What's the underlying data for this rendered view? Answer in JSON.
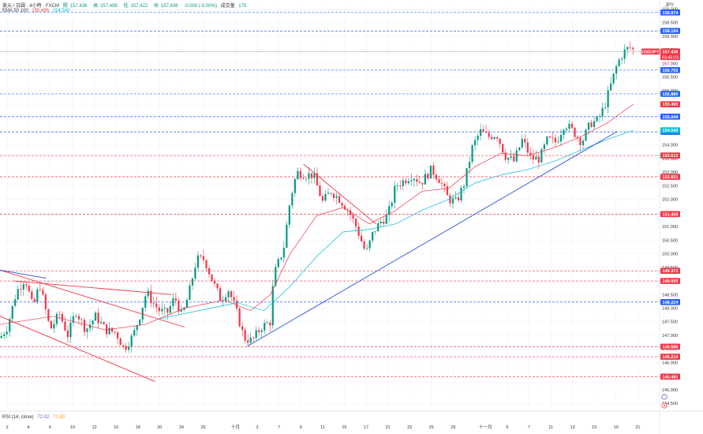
{
  "header": {
    "symbol": "美元 / 日圓 · 4小時 · FXCM",
    "open_label": "開",
    "open": "157.436",
    "high_label": "高",
    "high": "157.498",
    "low_label": "低",
    "low": "157.422",
    "close_label": "收",
    "close": "157.436",
    "change": "-0.000 (-0.00%)",
    "volume_label": "成交量",
    "volume": "175",
    "ema_label": "EMA 50 100",
    "ema_fast": "155.495",
    "ema_slow": "154.540"
  },
  "rsi": {
    "label": "RSI (14, close)",
    "value1": "72.02",
    "value2": "71.63"
  },
  "currency": "JPY",
  "colors": {
    "up": "#089981",
    "down": "#f23645",
    "ema_fast": "#f23645",
    "ema_slow": "#00bcd4",
    "trend_blue": "#2a4fd6",
    "level_blue": "#2962ff",
    "level_red": "#f23645",
    "axis_text": "#333333",
    "grid": "#f0f3fa"
  },
  "chart_data": {
    "type": "candlestick",
    "currency": "JPY",
    "y_axis": {
      "range": [
        144.3,
        159.1
      ],
      "ticks": [
        "159.000",
        "158.500",
        "158.000",
        "157.500",
        "157.000",
        "156.500",
        "156.000",
        "155.500",
        "155.000",
        "154.500",
        "154.000",
        "153.500",
        "153.000",
        "152.500",
        "152.000",
        "151.500",
        "151.000",
        "150.500",
        "150.000",
        "149.500",
        "149.000",
        "148.500",
        "148.000",
        "147.500",
        "147.000",
        "146.500",
        "146.000",
        "145.500",
        "145.000",
        "144.500"
      ]
    },
    "x_axis": {
      "range": [
        0,
        100
      ],
      "ticks": [
        {
          "label": "2",
          "pos": 1.1
        },
        {
          "label": "4",
          "pos": 4.3
        },
        {
          "label": "6",
          "pos": 7.6
        },
        {
          "label": "10",
          "pos": 11.0
        },
        {
          "label": "12",
          "pos": 14.3
        },
        {
          "label": "16",
          "pos": 17.6
        },
        {
          "label": "18",
          "pos": 20.9
        },
        {
          "label": "20",
          "pos": 24.2
        },
        {
          "label": "24",
          "pos": 27.5
        },
        {
          "label": "26",
          "pos": 30.8
        },
        {
          "label": "十月",
          "pos": 35.7
        },
        {
          "label": "3",
          "pos": 39.0
        },
        {
          "label": "7",
          "pos": 42.3
        },
        {
          "label": "9",
          "pos": 45.6
        },
        {
          "label": "11",
          "pos": 48.9
        },
        {
          "label": "15",
          "pos": 52.2
        },
        {
          "label": "17",
          "pos": 55.5
        },
        {
          "label": "21",
          "pos": 58.8
        },
        {
          "label": "23",
          "pos": 62.1
        },
        {
          "label": "25",
          "pos": 65.4
        },
        {
          "label": "29",
          "pos": 68.7
        },
        {
          "label": "十一月",
          "pos": 73.6
        },
        {
          "label": "5",
          "pos": 76.9
        },
        {
          "label": "7",
          "pos": 80.2
        },
        {
          "label": "11",
          "pos": 83.5
        },
        {
          "label": "13",
          "pos": 86.8
        },
        {
          "label": "15",
          "pos": 90.1
        },
        {
          "label": "19",
          "pos": 93.4
        },
        {
          "label": "21",
          "pos": 96.7
        }
      ]
    },
    "price_path": [
      [
        0,
        146.9
      ],
      [
        1.1,
        147.3
      ],
      [
        2.5,
        148.6
      ],
      [
        3.8,
        149.1
      ],
      [
        5.0,
        148.0
      ],
      [
        6.0,
        148.9
      ],
      [
        7.6,
        147.2
      ],
      [
        9.0,
        147.8
      ],
      [
        10.3,
        147.0
      ],
      [
        11.5,
        147.9
      ],
      [
        13.0,
        147.2
      ],
      [
        14.5,
        147.7
      ],
      [
        16.0,
        147.2
      ],
      [
        17.6,
        147.1
      ],
      [
        18.8,
        146.5
      ],
      [
        20.2,
        147.0
      ],
      [
        21.3,
        147.8
      ],
      [
        22.2,
        148.6
      ],
      [
        23.2,
        148.2
      ],
      [
        24.2,
        147.9
      ],
      [
        25.3,
        147.8
      ],
      [
        26.5,
        148.4
      ],
      [
        27.6,
        147.7
      ],
      [
        28.6,
        148.5
      ],
      [
        29.8,
        149.8
      ],
      [
        31.0,
        149.8
      ],
      [
        32.2,
        149.0
      ],
      [
        33.5,
        148.3
      ],
      [
        34.6,
        148.7
      ],
      [
        35.7,
        148.0
      ],
      [
        37.0,
        146.9
      ],
      [
        38.2,
        146.8
      ],
      [
        39.6,
        147.3
      ],
      [
        41.0,
        147.5
      ],
      [
        41.5,
        149.2
      ],
      [
        43.0,
        150.2
      ],
      [
        44.0,
        152.0
      ],
      [
        45.0,
        153.0
      ],
      [
        46.3,
        152.9
      ],
      [
        47.5,
        152.9
      ],
      [
        48.9,
        151.9
      ],
      [
        50.2,
        152.3
      ],
      [
        51.5,
        152.0
      ],
      [
        52.8,
        151.6
      ],
      [
        54.0,
        151.0
      ],
      [
        55.5,
        150.0
      ],
      [
        56.6,
        150.8
      ],
      [
        57.8,
        151.2
      ],
      [
        58.8,
        151.4
      ],
      [
        60.0,
        152.5
      ],
      [
        61.3,
        152.7
      ],
      [
        62.5,
        152.9
      ],
      [
        63.8,
        152.6
      ],
      [
        65.4,
        153.1
      ],
      [
        66.7,
        152.7
      ],
      [
        68.0,
        152.0
      ],
      [
        69.2,
        151.9
      ],
      [
        70.4,
        152.6
      ],
      [
        71.6,
        153.9
      ],
      [
        72.8,
        154.5
      ],
      [
        74.0,
        154.3
      ],
      [
        75.3,
        154.4
      ],
      [
        76.6,
        153.6
      ],
      [
        77.9,
        153.4
      ],
      [
        79.2,
        154.2
      ],
      [
        80.5,
        153.5
      ],
      [
        81.8,
        153.5
      ],
      [
        83.0,
        154.2
      ],
      [
        84.3,
        154.1
      ],
      [
        85.6,
        154.8
      ],
      [
        86.9,
        154.5
      ],
      [
        88.2,
        154.1
      ],
      [
        89.5,
        154.8
      ],
      [
        90.6,
        154.9
      ],
      [
        91.6,
        155.4
      ],
      [
        92.6,
        156.2
      ],
      [
        93.6,
        157.0
      ],
      [
        94.5,
        157.4
      ],
      [
        95.4,
        157.6
      ],
      [
        96.3,
        157.44
      ]
    ],
    "ema_fast_path": [
      [
        0,
        147.4
      ],
      [
        8,
        147.7
      ],
      [
        16,
        147.2
      ],
      [
        22,
        147.4
      ],
      [
        28,
        148.0
      ],
      [
        34,
        148.3
      ],
      [
        38,
        147.9
      ],
      [
        41,
        148.5
      ],
      [
        44,
        150.0
      ],
      [
        48,
        151.4
      ],
      [
        52,
        151.7
      ],
      [
        56,
        151.1
      ],
      [
        60,
        151.6
      ],
      [
        64,
        152.3
      ],
      [
        68,
        152.4
      ],
      [
        72,
        153.2
      ],
      [
        76,
        153.7
      ],
      [
        80,
        153.6
      ],
      [
        84,
        153.9
      ],
      [
        88,
        154.3
      ],
      [
        92,
        154.8
      ],
      [
        96,
        155.5
      ]
    ],
    "ema_slow_path": [
      [
        24,
        147.6
      ],
      [
        30,
        147.9
      ],
      [
        36,
        148.2
      ],
      [
        40,
        147.9
      ],
      [
        44,
        148.8
      ],
      [
        48,
        149.9
      ],
      [
        52,
        150.8
      ],
      [
        56,
        150.9
      ],
      [
        60,
        151.1
      ],
      [
        64,
        151.6
      ],
      [
        68,
        152.0
      ],
      [
        72,
        152.6
      ],
      [
        76,
        152.9
      ],
      [
        80,
        153.1
      ],
      [
        84,
        153.4
      ],
      [
        88,
        153.8
      ],
      [
        92,
        154.2
      ],
      [
        96,
        154.54
      ]
    ],
    "trendlines": [
      {
        "color": "blue",
        "from": [
          37.5,
          146.6
        ],
        "to": [
          93.6,
          154.5
        ]
      },
      {
        "color": "red",
        "from": [
          46.0,
          153.3
        ],
        "to": [
          57.0,
          151.1
        ]
      },
      {
        "color": "red",
        "from": [
          2.0,
          149.0
        ],
        "to": [
          26.0,
          148.5
        ]
      },
      {
        "color": "red",
        "from": [
          0,
          149.4
        ],
        "to": [
          28.0,
          147.3
        ]
      },
      {
        "color": "red",
        "from": [
          0,
          147.7
        ],
        "to": [
          23.5,
          145.3
        ]
      },
      {
        "color": "blue",
        "from": [
          0,
          149.4
        ],
        "to": [
          7.0,
          149.1
        ]
      }
    ],
    "levels_blue": [
      {
        "value": 158.874,
        "label": "158.874"
      },
      {
        "value": 158.194,
        "label": "158.194"
      },
      {
        "value": 156.755,
        "label": "156.755"
      },
      {
        "value": 155.88,
        "label": "155.880"
      },
      {
        "value": 155.044,
        "label": "155.044"
      },
      {
        "value": 154.482,
        "label": "154.482"
      },
      {
        "value": 148.224,
        "label": "148.224"
      }
    ],
    "levels_red": [
      {
        "value": 153.613,
        "label": "153.613"
      },
      {
        "value": 152.831,
        "label": "152.831"
      },
      {
        "value": 151.458,
        "label": "151.458"
      },
      {
        "value": 149.373,
        "label": "149.373"
      },
      {
        "value": 149.0,
        "label": "149.000"
      },
      {
        "value": 146.585,
        "label": "146.585"
      },
      {
        "value": 146.214,
        "label": "146.214"
      },
      {
        "value": 145.481,
        "label": "145.481"
      }
    ],
    "price_labels": {
      "current": {
        "value": 157.436,
        "symbol": "USDJPY",
        "label": "157.436",
        "countdown": "03:45:03"
      },
      "ema_fast": {
        "value": 155.495,
        "label": "155.495"
      },
      "ema_slow": {
        "value": 154.54,
        "label": "154.540"
      }
    }
  }
}
